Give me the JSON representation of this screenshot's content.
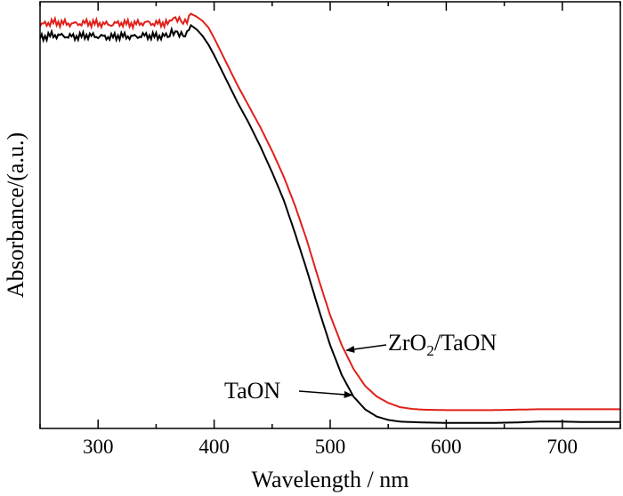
{
  "chart_data": {
    "type": "line",
    "xlabel": "Wavelength / nm",
    "ylabel": "Absorbance/(a.u.)",
    "xlim": [
      250,
      750
    ],
    "ylim": [
      0,
      1.0
    ],
    "x_ticks": [
      "300",
      "400",
      "500",
      "600",
      "700"
    ],
    "x_tick_values": [
      300,
      400,
      500,
      600,
      700
    ],
    "y_ticks_labeled": false,
    "grid": false,
    "legend": "none",
    "series": [
      {
        "name": "ZrO2/TaON",
        "color": "#e0201a",
        "x": [
          250,
          260,
          270,
          280,
          290,
          300,
          310,
          320,
          330,
          340,
          350,
          360,
          365,
          370,
          375,
          380,
          385,
          390,
          395,
          400,
          410,
          420,
          430,
          440,
          450,
          460,
          470,
          480,
          490,
          500,
          510,
          520,
          530,
          540,
          550,
          560,
          570,
          580,
          600,
          620,
          640,
          660,
          680,
          700,
          720,
          750
        ],
        "y": [
          0.945,
          0.952,
          0.95,
          0.948,
          0.951,
          0.949,
          0.947,
          0.95,
          0.948,
          0.951,
          0.949,
          0.95,
          0.962,
          0.958,
          0.95,
          0.972,
          0.965,
          0.955,
          0.94,
          0.915,
          0.86,
          0.805,
          0.755,
          0.705,
          0.65,
          0.59,
          0.52,
          0.44,
          0.35,
          0.265,
          0.195,
          0.14,
          0.1,
          0.075,
          0.06,
          0.05,
          0.046,
          0.044,
          0.043,
          0.043,
          0.043,
          0.044,
          0.045,
          0.045,
          0.045,
          0.045
        ]
      },
      {
        "name": "TaON",
        "color": "#000000",
        "x": [
          250,
          260,
          270,
          280,
          290,
          300,
          310,
          320,
          330,
          340,
          350,
          360,
          365,
          370,
          375,
          380,
          385,
          390,
          395,
          400,
          410,
          420,
          430,
          440,
          450,
          460,
          470,
          480,
          490,
          500,
          510,
          520,
          530,
          540,
          550,
          560,
          570,
          580,
          600,
          620,
          640,
          660,
          680,
          700,
          720,
          750
        ],
        "y": [
          0.915,
          0.922,
          0.92,
          0.918,
          0.921,
          0.919,
          0.917,
          0.92,
          0.918,
          0.921,
          0.919,
          0.92,
          0.93,
          0.925,
          0.92,
          0.945,
          0.935,
          0.92,
          0.9,
          0.875,
          0.82,
          0.765,
          0.715,
          0.66,
          0.6,
          0.535,
          0.455,
          0.37,
          0.28,
          0.195,
          0.125,
          0.075,
          0.045,
          0.028,
          0.02,
          0.016,
          0.015,
          0.014,
          0.013,
          0.013,
          0.013,
          0.014,
          0.016,
          0.016,
          0.015,
          0.015
        ]
      }
    ],
    "annotations": [
      {
        "text_main": "ZrO",
        "text_sub": "2",
        "text_rest": "/TaON",
        "arrow_to_series": "ZrO2/TaON",
        "arrow_x": 514,
        "arrow_y": 0.183
      },
      {
        "text": "TaON",
        "arrow_to_series": "TaON",
        "arrow_x": 522,
        "arrow_y": 0.078
      }
    ]
  }
}
